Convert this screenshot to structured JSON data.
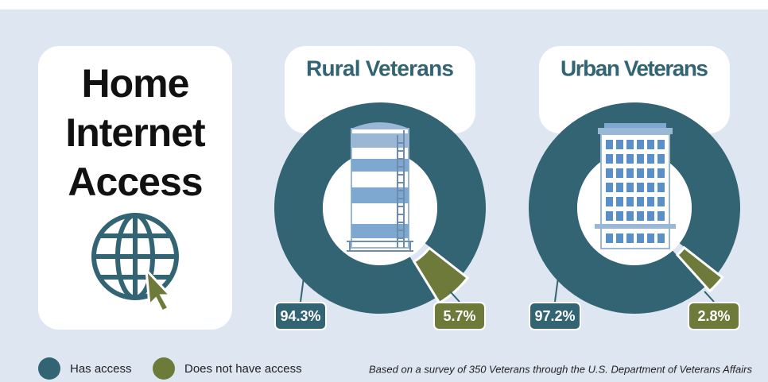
{
  "title": "Home Internet Access",
  "chart_data": [
    {
      "type": "donut",
      "title": "Rural Veterans",
      "categories": [
        "Has access",
        "Does not have access"
      ],
      "values": [
        94.3,
        5.7
      ],
      "value_labels": [
        "94.3%",
        "5.7%"
      ],
      "colors": [
        "#336473",
        "#6e7a3a"
      ]
    },
    {
      "type": "donut",
      "title": "Urban Veterans",
      "categories": [
        "Has access",
        "Does not have access"
      ],
      "values": [
        97.2,
        2.8
      ],
      "value_labels": [
        "97.2%",
        "2.8%"
      ],
      "colors": [
        "#336473",
        "#6e7a3a"
      ]
    }
  ],
  "note": "Based on a survey of 350 Veterans through the U.S. Department of Veterans Affairs"
}
